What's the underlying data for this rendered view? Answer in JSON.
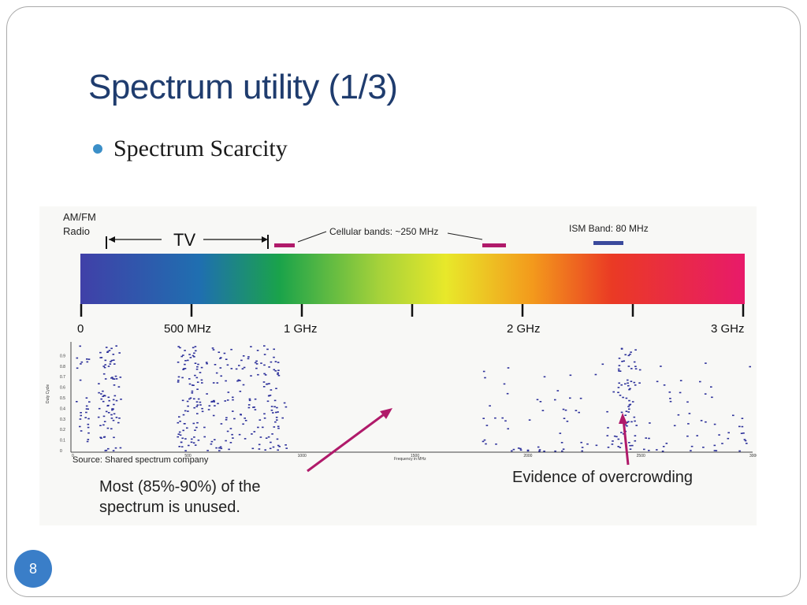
{
  "slide": {
    "title": "Spectrum utility (1/3)",
    "bullet": "Spectrum Scarcity",
    "page_number": "8"
  },
  "figure": {
    "top_labels": {
      "am_fm_line1": "AM/FM",
      "am_fm_line2": "Radio",
      "tv": "TV",
      "cellular": "Cellular bands: ~250 MHz",
      "ism": "ISM Band: 80 MHz"
    },
    "bar_ticks": [
      "0",
      "500 MHz",
      "1 GHz",
      "2 GHz",
      "3 GHz"
    ],
    "colors": {
      "band_marker": "#b01a6a",
      "ism_marker": "#3b4a9c",
      "arrow": "#b01a6a",
      "occupancy_dots": "#2b2f9a"
    },
    "source": "Source: Shared spectrum company",
    "annotation_left_line1": "Most (85%-90%) of the",
    "annotation_left_line2": "spectrum is unused.",
    "annotation_right": "Evidence of overcrowding"
  },
  "chart_data": {
    "type": "scatter",
    "xlabel": "Frequency in MHz",
    "ylabel": "Duty Cycle",
    "xlim": [
      0,
      3000
    ],
    "ylim": [
      0,
      1
    ],
    "x_ticks": [
      "0",
      "500",
      "1000",
      "1500",
      "2000",
      "2500",
      "3000"
    ],
    "y_ticks": [
      "0",
      "0.1",
      "0.2",
      "0.3",
      "0.4",
      "0.5",
      "0.6",
      "0.7",
      "0.8",
      "0.9"
    ],
    "occupied_bands_mhz": [
      {
        "range": [
          0,
          30
        ],
        "density": "medium"
      },
      {
        "range": [
          40,
          60
        ],
        "density": "high"
      },
      {
        "range": [
          100,
          200
        ],
        "density": "high"
      },
      {
        "range": [
          450,
          560
        ],
        "density": "high"
      },
      {
        "range": [
          560,
          700
        ],
        "density": "medium"
      },
      {
        "range": [
          700,
          850
        ],
        "density": "medium"
      },
      {
        "range": [
          850,
          900
        ],
        "density": "high"
      },
      {
        "range": [
          900,
          960
        ],
        "density": "low"
      },
      {
        "range": [
          1800,
          1990
        ],
        "density": "low"
      },
      {
        "range": [
          2000,
          2100
        ],
        "density": "low"
      },
      {
        "range": [
          2100,
          2400
        ],
        "density": "low"
      },
      {
        "range": [
          2400,
          2480
        ],
        "density": "high"
      },
      {
        "range": [
          2480,
          3000
        ],
        "density": "low"
      }
    ]
  }
}
